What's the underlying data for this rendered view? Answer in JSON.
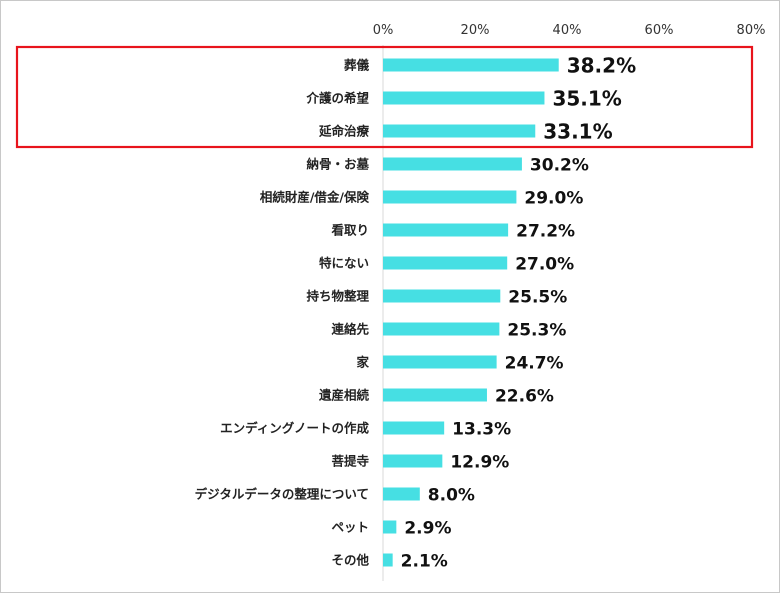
{
  "chart_data": {
    "type": "bar",
    "orientation": "horizontal",
    "xlim": [
      0,
      80
    ],
    "xticks": [
      "0%",
      "20%",
      "40%",
      "60%",
      "80%"
    ],
    "categories": [
      "葬儀",
      "介護の希望",
      "延命治療",
      "納骨・お墓",
      "相続財産/借金/保険",
      "看取り",
      "特にない",
      "持ち物整理",
      "連絡先",
      "家",
      "遺産相続",
      "エンディングノートの作成",
      "菩提寺",
      "デジタルデータの整理について",
      "ペット",
      "その他"
    ],
    "values": [
      38.2,
      35.1,
      33.1,
      30.2,
      29.0,
      27.2,
      27.0,
      25.5,
      25.3,
      24.7,
      22.6,
      13.3,
      12.9,
      8.0,
      2.9,
      2.1
    ],
    "value_labels": [
      "38.2%",
      "35.1%",
      "33.1%",
      "30.2%",
      "29.0%",
      "27.2%",
      "27.0%",
      "25.5%",
      "25.3%",
      "24.7%",
      "22.6%",
      "13.3%",
      "12.9%",
      "8.0%",
      "2.9%",
      "2.1%"
    ],
    "highlighted_categories": [
      "葬儀",
      "介護の希望",
      "延命治療"
    ],
    "bar_color": "#46dfe3",
    "highlight_color": "#e8141c",
    "grid": false
  }
}
